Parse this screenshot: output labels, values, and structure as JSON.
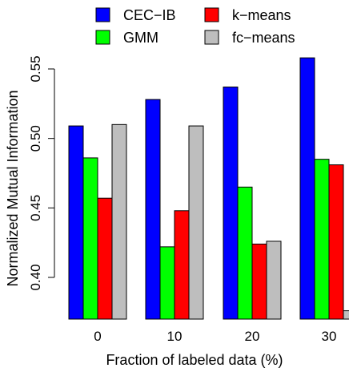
{
  "chart_data": {
    "type": "bar",
    "xlabel": "Fraction of labeled data (%)",
    "ylabel": "Normalized Mutual Information",
    "categories": [
      "0",
      "10",
      "20",
      "30"
    ],
    "ylim": [
      0.37,
      0.565
    ],
    "yticks": [
      "0.40",
      "0.45",
      "0.50",
      "0.55"
    ],
    "y_axis_line_range": [
      0.4,
      0.55
    ],
    "grid": false,
    "legend_position": "top",
    "series": [
      {
        "name": "CEC−IB",
        "color": "#0000ff",
        "values": [
          0.509,
          0.528,
          0.537,
          0.558
        ]
      },
      {
        "name": "GMM",
        "color": "#00ff00",
        "values": [
          0.486,
          0.422,
          0.465,
          0.485
        ]
      },
      {
        "name": "k−means",
        "color": "#ff0000",
        "values": [
          0.457,
          0.448,
          0.424,
          0.481
        ]
      },
      {
        "name": "fc−means",
        "color": "#bebebe",
        "values": [
          0.51,
          0.509,
          0.426,
          0.376
        ]
      }
    ]
  }
}
